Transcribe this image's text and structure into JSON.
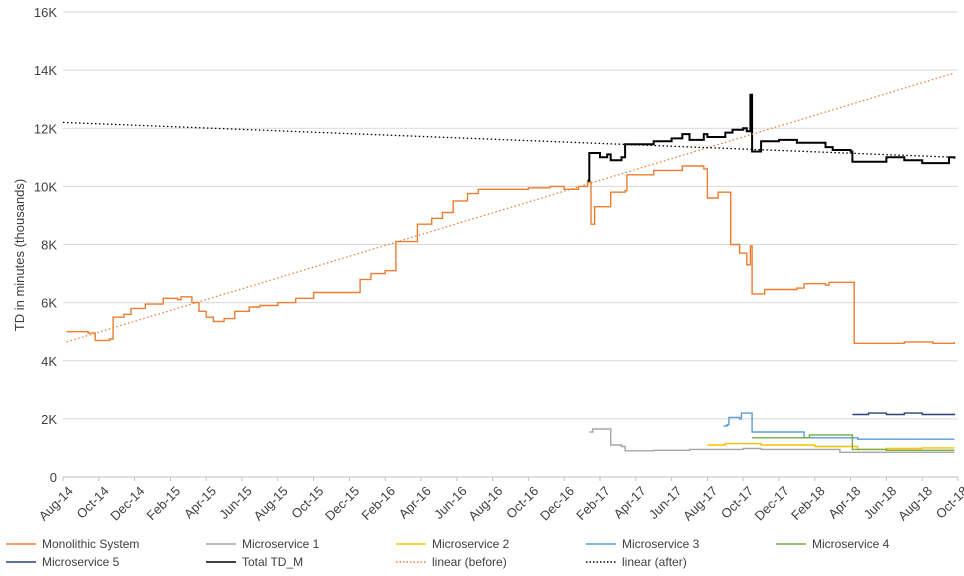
{
  "chart_data": {
    "type": "line",
    "title": "",
    "xlabel": "",
    "ylabel": "TD in minutes (thousands)",
    "ylim": [
      0,
      16000
    ],
    "grid": true,
    "legend_position": "bottom",
    "y_ticks": [
      "0",
      "2K",
      "4K",
      "6K",
      "8K",
      "10K",
      "12K",
      "14K",
      "16K"
    ],
    "x_ticks": [
      "Aug-14",
      "Oct-14",
      "Dec-14",
      "Feb-15",
      "Apr-15",
      "Jun-15",
      "Aug-15",
      "Oct-15",
      "Dec-15",
      "Feb-16",
      "Apr-16",
      "Jun-16",
      "Aug-16",
      "Oct-16",
      "Dec-16",
      "Feb-17",
      "Apr-17",
      "Jun-17",
      "Aug-17",
      "Oct-17",
      "Dec-17",
      "Feb-18",
      "Apr-18",
      "Jun-18",
      "Aug-18",
      "Oct-18"
    ],
    "series": [
      {
        "name": "Monolithic System",
        "color": "#ED7D31",
        "style": "solid",
        "points": [
          [
            0.1,
            5000
          ],
          [
            0.7,
            4950
          ],
          [
            0.9,
            4700
          ],
          [
            1.3,
            4750
          ],
          [
            1.4,
            5500
          ],
          [
            1.7,
            5600
          ],
          [
            1.9,
            5800
          ],
          [
            2.3,
            5950
          ],
          [
            2.8,
            6150
          ],
          [
            3.2,
            6100
          ],
          [
            3.3,
            6200
          ],
          [
            3.6,
            6000
          ],
          [
            3.8,
            5700
          ],
          [
            4.0,
            5500
          ],
          [
            4.2,
            5350
          ],
          [
            4.5,
            5450
          ],
          [
            4.8,
            5700
          ],
          [
            5.2,
            5850
          ],
          [
            5.5,
            5900
          ],
          [
            6.0,
            6000
          ],
          [
            6.5,
            6150
          ],
          [
            7.0,
            6350
          ],
          [
            8.0,
            6350
          ],
          [
            8.3,
            6800
          ],
          [
            8.6,
            7000
          ],
          [
            9.0,
            7100
          ],
          [
            9.3,
            8100
          ],
          [
            9.8,
            8100
          ],
          [
            9.9,
            8700
          ],
          [
            10.3,
            8900
          ],
          [
            10.6,
            9100
          ],
          [
            10.9,
            9500
          ],
          [
            11.3,
            9750
          ],
          [
            11.6,
            9900
          ],
          [
            12.5,
            9900
          ],
          [
            13.0,
            9950
          ],
          [
            13.6,
            10000
          ],
          [
            14.0,
            9900
          ],
          [
            14.4,
            10000
          ],
          [
            14.65,
            10150
          ],
          [
            14.75,
            8700
          ],
          [
            14.85,
            9300
          ],
          [
            15.2,
            9300
          ],
          [
            15.3,
            9800
          ],
          [
            15.7,
            9850
          ],
          [
            15.75,
            10400
          ],
          [
            16.5,
            10550
          ],
          [
            17.3,
            10700
          ],
          [
            17.9,
            10600
          ],
          [
            18.0,
            9600
          ],
          [
            18.3,
            9800
          ],
          [
            18.6,
            9800
          ],
          [
            18.65,
            8000
          ],
          [
            18.9,
            7700
          ],
          [
            19.1,
            7300
          ],
          [
            19.2,
            7950
          ],
          [
            19.25,
            6300
          ],
          [
            19.6,
            6450
          ],
          [
            20.5,
            6500
          ],
          [
            20.7,
            6650
          ],
          [
            21.3,
            6600
          ],
          [
            21.4,
            6700
          ],
          [
            22.05,
            6700
          ],
          [
            22.1,
            4600
          ],
          [
            23.0,
            4600
          ],
          [
            23.5,
            4650
          ],
          [
            24.3,
            4600
          ],
          [
            24.9,
            4650
          ]
        ]
      },
      {
        "name": "Microservice 1",
        "color": "#A5A5A5",
        "style": "solid",
        "points": [
          [
            14.7,
            1550
          ],
          [
            14.8,
            1650
          ],
          [
            15.2,
            1650
          ],
          [
            15.3,
            1100
          ],
          [
            15.6,
            1050
          ],
          [
            15.7,
            900
          ],
          [
            16.5,
            920
          ],
          [
            17.5,
            950
          ],
          [
            18.0,
            950
          ],
          [
            19.0,
            980
          ],
          [
            19.5,
            950
          ],
          [
            21.5,
            950
          ],
          [
            21.7,
            850
          ],
          [
            22.5,
            850
          ],
          [
            23.5,
            850
          ],
          [
            24.9,
            850
          ]
        ]
      },
      {
        "name": "Microservice 2",
        "color": "#FFC000",
        "style": "solid",
        "points": [
          [
            18.0,
            1100
          ],
          [
            18.5,
            1150
          ],
          [
            19.0,
            1150
          ],
          [
            19.5,
            1100
          ],
          [
            20.0,
            1100
          ],
          [
            21.0,
            1050
          ],
          [
            22.1,
            1050
          ],
          [
            22.2,
            950
          ],
          [
            23.0,
            980
          ],
          [
            24.0,
            1000
          ],
          [
            24.9,
            1000
          ]
        ]
      },
      {
        "name": "Microservice 3",
        "color": "#5B9BD5",
        "style": "solid",
        "points": [
          [
            18.45,
            1750
          ],
          [
            18.55,
            1800
          ],
          [
            18.6,
            2050
          ],
          [
            18.9,
            2000
          ],
          [
            18.95,
            2200
          ],
          [
            19.2,
            2200
          ],
          [
            19.25,
            1550
          ],
          [
            20.6,
            1550
          ],
          [
            20.7,
            1350
          ],
          [
            21.7,
            1350
          ],
          [
            22.1,
            1350
          ],
          [
            22.2,
            1300
          ],
          [
            24.9,
            1300
          ]
        ]
      },
      {
        "name": "Microservice 4",
        "color": "#70AD47",
        "style": "solid",
        "points": [
          [
            19.25,
            1350
          ],
          [
            20.8,
            1350
          ],
          [
            20.85,
            1450
          ],
          [
            22.0,
            1450
          ],
          [
            22.05,
            950
          ],
          [
            23.0,
            920
          ],
          [
            24.9,
            920
          ]
        ]
      },
      {
        "name": "Microservice 5",
        "color": "#264478",
        "style": "solid",
        "points": [
          [
            22.05,
            2150
          ],
          [
            22.5,
            2200
          ],
          [
            23.0,
            2150
          ],
          [
            23.5,
            2200
          ],
          [
            24.0,
            2150
          ],
          [
            24.9,
            2180
          ]
        ]
      },
      {
        "name": "Total TD_M",
        "color": "#000000",
        "style": "solid",
        "points": [
          [
            14.65,
            10200
          ],
          [
            14.7,
            11150
          ],
          [
            15.0,
            11000
          ],
          [
            15.2,
            11100
          ],
          [
            15.3,
            10900
          ],
          [
            15.6,
            11000
          ],
          [
            15.7,
            11450
          ],
          [
            16.5,
            11550
          ],
          [
            17.0,
            11650
          ],
          [
            17.3,
            11800
          ],
          [
            17.5,
            11600
          ],
          [
            17.9,
            11800
          ],
          [
            18.0,
            11700
          ],
          [
            18.5,
            11850
          ],
          [
            18.7,
            11950
          ],
          [
            19.0,
            12000
          ],
          [
            19.1,
            11900
          ],
          [
            19.2,
            13150
          ],
          [
            19.25,
            11200
          ],
          [
            19.5,
            11550
          ],
          [
            20.0,
            11600
          ],
          [
            20.5,
            11500
          ],
          [
            21.0,
            11500
          ],
          [
            21.3,
            11350
          ],
          [
            21.5,
            11250
          ],
          [
            22.0,
            11200
          ],
          [
            22.05,
            10850
          ],
          [
            22.5,
            10850
          ],
          [
            23.0,
            11000
          ],
          [
            23.5,
            10900
          ],
          [
            24.0,
            10800
          ],
          [
            24.7,
            10800
          ],
          [
            24.75,
            11000
          ],
          [
            24.9,
            10950
          ]
        ]
      },
      {
        "name": "linear (before)",
        "color": "#ED7D31",
        "style": "dotted",
        "points": [
          [
            0.1,
            4650
          ],
          [
            24.9,
            13900
          ]
        ]
      },
      {
        "name": "linear (after)",
        "color": "#000000",
        "style": "dotted",
        "points": [
          [
            0.0,
            12200
          ],
          [
            24.9,
            11000
          ]
        ]
      }
    ]
  }
}
